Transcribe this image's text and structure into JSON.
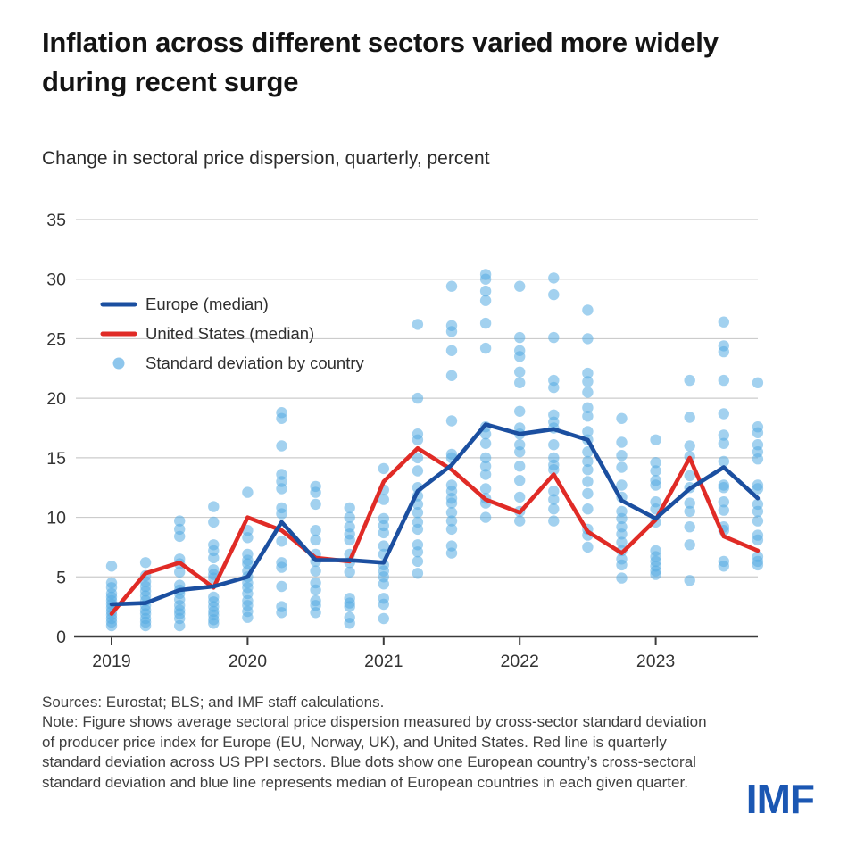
{
  "header": {
    "title": "Inflation across different sectors varied more widely during recent surge",
    "subtitle": "Change in sectoral price dispersion, quarterly, percent"
  },
  "legend": {
    "europe": "Europe (median)",
    "us": "United States (median)",
    "dots": "Standard deviation by country"
  },
  "footer": {
    "sources": "Sources: Eurostat; BLS; and IMF staff calculations.",
    "note": "Note: Figure shows average sectoral price dispersion measured by cross-sector standard deviation of producer price index for Europe (EU, Norway, UK), and United States. Red line is quarterly standard deviation across US PPI sectors. Blue dots show one European country’s cross-sectoral standard deviation and blue line represents median of European countries in each given quarter."
  },
  "logo": "IMF",
  "colors": {
    "europe_line": "#1b4fa0",
    "us_line": "#e02b26",
    "dot_fill": "#55ace2",
    "legend_dot": "#8ec6ec",
    "grid": "#cccccc",
    "axis": "#3a3a3a",
    "logo_blue": "#1b57b3"
  },
  "chart_data": {
    "type": "line+scatter",
    "title": "Change in sectoral price dispersion, quarterly, percent",
    "x_unit": "quarter",
    "quarters": [
      "2019Q1",
      "2019Q2",
      "2019Q3",
      "2019Q4",
      "2020Q1",
      "2020Q2",
      "2020Q3",
      "2020Q4",
      "2021Q1",
      "2021Q2",
      "2021Q3",
      "2021Q4",
      "2022Q1",
      "2022Q2",
      "2022Q3",
      "2022Q4",
      "2023Q1",
      "2023Q2",
      "2023Q3",
      "2023Q4"
    ],
    "x_tick_labels": [
      "2019",
      "2020",
      "2021",
      "2022",
      "2023"
    ],
    "y_ticks": [
      0,
      5,
      10,
      15,
      20,
      25,
      30,
      35
    ],
    "ylim": [
      0,
      35
    ],
    "grid": true,
    "legend_position": "upper-left-inside",
    "series": [
      {
        "name": "Europe (median)",
        "id": "europe-median",
        "type": "line",
        "color": "#1b4fa0",
        "values": [
          2.7,
          2.8,
          3.9,
          4.2,
          5.0,
          9.6,
          6.4,
          6.4,
          6.2,
          12.2,
          14.4,
          17.8,
          17.0,
          17.4,
          16.5,
          11.4,
          9.9,
          12.4,
          14.2,
          11.6
        ]
      },
      {
        "name": "United States (median)",
        "id": "us-median",
        "type": "line",
        "color": "#e02b26",
        "values": [
          1.9,
          5.3,
          6.2,
          4.1,
          10.0,
          8.9,
          6.6,
          6.3,
          13.0,
          15.8,
          14.0,
          11.5,
          10.4,
          13.6,
          8.8,
          7.0,
          9.8,
          15.0,
          8.4,
          7.2
        ]
      },
      {
        "name": "Standard deviation by country",
        "id": "std-dev-by-country",
        "type": "scatter",
        "color": "#55ace2",
        "points_by_quarter": [
          [
            5.9,
            4.5,
            4.1,
            3.6,
            3.3,
            3.0,
            2.7,
            2.4,
            2.1,
            1.8,
            1.5,
            1.2,
            0.9
          ],
          [
            6.2,
            5.1,
            4.6,
            4.2,
            3.8,
            3.4,
            3.0,
            2.6,
            2.2,
            1.9,
            1.5,
            1.2,
            0.9
          ],
          [
            9.7,
            9.0,
            8.4,
            6.5,
            6.1,
            5.4,
            4.3,
            3.9,
            3.6,
            3.1,
            2.6,
            2.2,
            1.9,
            1.5,
            0.9
          ],
          [
            10.9,
            9.6,
            7.7,
            7.2,
            6.6,
            5.6,
            5.2,
            4.9,
            3.3,
            2.9,
            2.5,
            2.1,
            1.8,
            1.4,
            1.1
          ],
          [
            12.1,
            8.9,
            8.3,
            6.9,
            6.4,
            6.1,
            5.5,
            5.0,
            4.5,
            4.1,
            3.6,
            3.0,
            2.6,
            2.1,
            1.6
          ],
          [
            18.8,
            18.3,
            16.0,
            13.6,
            13.0,
            12.4,
            10.8,
            10.3,
            8.0,
            6.2,
            5.8,
            4.2,
            2.5,
            2.0
          ],
          [
            12.6,
            12.1,
            11.1,
            8.9,
            8.1,
            6.9,
            6.3,
            5.5,
            4.5,
            3.9,
            3.0,
            2.6,
            2.0
          ],
          [
            10.8,
            10.0,
            9.2,
            8.6,
            8.1,
            6.9,
            6.2,
            5.4,
            3.2,
            2.8,
            2.5,
            1.6,
            1.1
          ],
          [
            14.1,
            12.3,
            11.5,
            9.9,
            9.3,
            8.7,
            7.6,
            6.9,
            6.0,
            5.5,
            5.0,
            4.4,
            3.2,
            2.7,
            1.5
          ],
          [
            26.2,
            20.0,
            17.0,
            16.5,
            15.0,
            13.9,
            12.5,
            11.8,
            11.1,
            10.4,
            9.6,
            9.0,
            7.7,
            7.1,
            6.3,
            5.3
          ],
          [
            29.4,
            26.1,
            25.6,
            24.0,
            21.9,
            18.1,
            15.3,
            15.0,
            12.7,
            12.2,
            11.6,
            11.2,
            10.4,
            9.7,
            9.0,
            7.6,
            7.0
          ],
          [
            30.4,
            30.0,
            29.0,
            28.2,
            26.3,
            24.2,
            17.6,
            17.0,
            16.2,
            15.0,
            14.3,
            13.6,
            12.4,
            11.6,
            11.2,
            10.0
          ],
          [
            29.4,
            25.1,
            24.0,
            23.5,
            22.2,
            21.3,
            18.9,
            17.5,
            17.0,
            16.1,
            15.5,
            14.3,
            13.1,
            11.7,
            10.5,
            9.7
          ],
          [
            30.1,
            28.7,
            25.1,
            21.5,
            20.9,
            18.6,
            18.0,
            17.5,
            16.1,
            15.0,
            14.4,
            14.0,
            12.2,
            11.5,
            10.7,
            9.7
          ],
          [
            27.4,
            25.0,
            22.1,
            21.4,
            20.5,
            19.2,
            18.5,
            17.2,
            16.5,
            15.5,
            14.7,
            14.0,
            13.0,
            12.0,
            10.7,
            9.0,
            8.5,
            7.5
          ],
          [
            18.3,
            16.3,
            15.2,
            14.2,
            12.7,
            11.7,
            10.5,
            9.9,
            9.2,
            8.6,
            7.9,
            7.2,
            6.5,
            6.0,
            4.9
          ],
          [
            16.5,
            14.6,
            13.9,
            13.1,
            12.7,
            11.3,
            10.7,
            9.6,
            7.2,
            6.7,
            6.3,
            5.9,
            5.5,
            5.2
          ],
          [
            21.5,
            18.4,
            16.0,
            15.1,
            13.5,
            12.5,
            11.2,
            10.5,
            9.2,
            7.7,
            4.7
          ],
          [
            26.4,
            24.4,
            23.9,
            21.5,
            18.7,
            16.9,
            16.2,
            14.7,
            12.7,
            12.5,
            11.3,
            10.6,
            9.2,
            8.9,
            6.3,
            5.9
          ],
          [
            21.3,
            17.6,
            17.1,
            16.1,
            15.5,
            14.9,
            12.7,
            12.4,
            11.1,
            10.5,
            9.7,
            8.5,
            8.1,
            6.7,
            6.3,
            6.0
          ]
        ]
      }
    ]
  }
}
